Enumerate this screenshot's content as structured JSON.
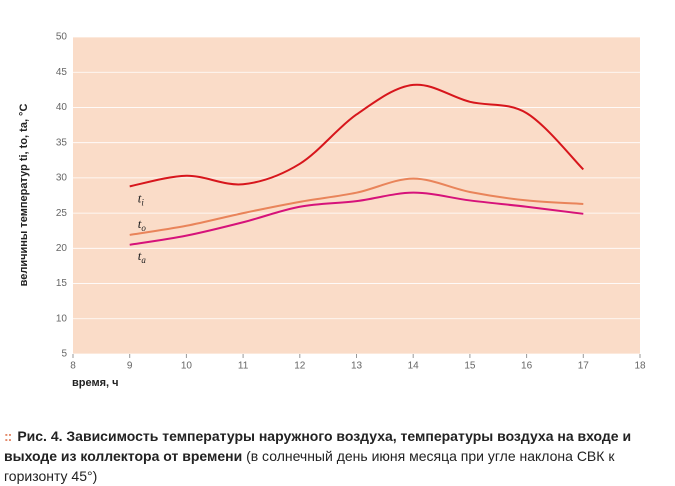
{
  "chart_data": {
    "type": "line",
    "y_label": "величины температур ti, to, ta, °C",
    "x_label": "время, ч",
    "x": [
      9,
      10,
      11,
      12,
      13,
      14,
      15,
      16,
      17
    ],
    "series": [
      {
        "name": "t",
        "subscript": "i",
        "color": "#d7161c",
        "values": [
          28.8,
          30.3,
          29.1,
          32,
          39,
          43.2,
          40.8,
          39.2,
          31.2
        ]
      },
      {
        "name": "t",
        "subscript": "o",
        "color": "#e9845a",
        "values": [
          21.9,
          23.2,
          25,
          26.6,
          27.9,
          29.9,
          28,
          26.8,
          26.3
        ]
      },
      {
        "name": "t",
        "subscript": "a",
        "color": "#d6127a",
        "values": [
          20.5,
          21.8,
          23.7,
          25.9,
          26.7,
          27.9,
          26.8,
          25.9,
          24.9
        ]
      }
    ],
    "xlim": [
      8,
      18
    ],
    "xticks": [
      8,
      9,
      10,
      11,
      12,
      13,
      14,
      15,
      16,
      17,
      18
    ],
    "ylim": [
      5,
      50
    ],
    "yticks": [
      5,
      10,
      15,
      20,
      25,
      30,
      35,
      40,
      45,
      50
    ],
    "background": "#fadcc8"
  },
  "caption": {
    "bold": "Рис. 4. Зависимость температуры наружного воздуха, температуры воздуха на входе и выходе из коллектора от времени",
    "normal": "(в солнечный день июня месяца при угле наклона СВК к горизонту 45°)"
  }
}
